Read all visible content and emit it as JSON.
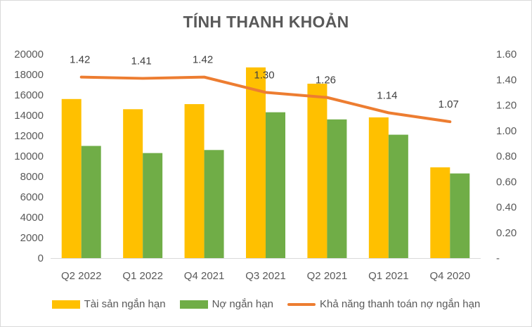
{
  "chart_data": {
    "type": "bar",
    "title": "TÍNH THANH KHOẢN",
    "categories": [
      "Q2 2022",
      "Q1 2022",
      "Q4 2021",
      "Q3 2021",
      "Q2 2021",
      "Q1 2021",
      "Q4 2020"
    ],
    "series": [
      {
        "name": "Tài sản ngắn hạn",
        "type": "bar",
        "axis": "left",
        "color": "#ffc000",
        "values": [
          15600,
          14600,
          15100,
          18700,
          17100,
          13800,
          8900
        ]
      },
      {
        "name": "Nợ ngắn hạn",
        "type": "bar",
        "axis": "left",
        "color": "#70ad47",
        "values": [
          11000,
          10300,
          10600,
          14300,
          13600,
          12100,
          8300
        ]
      },
      {
        "name": "Khả năng thanh toán nợ ngắn hạn",
        "type": "line",
        "axis": "right",
        "color": "#ed7d31",
        "values": [
          1.42,
          1.41,
          1.42,
          1.3,
          1.26,
          1.14,
          1.07
        ],
        "labels": [
          "1.42",
          "1.41",
          "1.42",
          "1.30",
          "1.26",
          "1.14",
          "1.07"
        ]
      }
    ],
    "y_left": {
      "ylim": [
        0,
        20000
      ],
      "ticks": [
        "0",
        "2000",
        "4000",
        "6000",
        "8000",
        "10000",
        "12000",
        "14000",
        "16000",
        "18000",
        "20000"
      ]
    },
    "y_right": {
      "ylim": [
        0,
        1.6
      ],
      "ticks": [
        "-",
        "0.20",
        "0.40",
        "0.60",
        "0.80",
        "1.00",
        "1.20",
        "1.40",
        "1.60"
      ]
    },
    "grid": false,
    "legend": "bottom"
  }
}
